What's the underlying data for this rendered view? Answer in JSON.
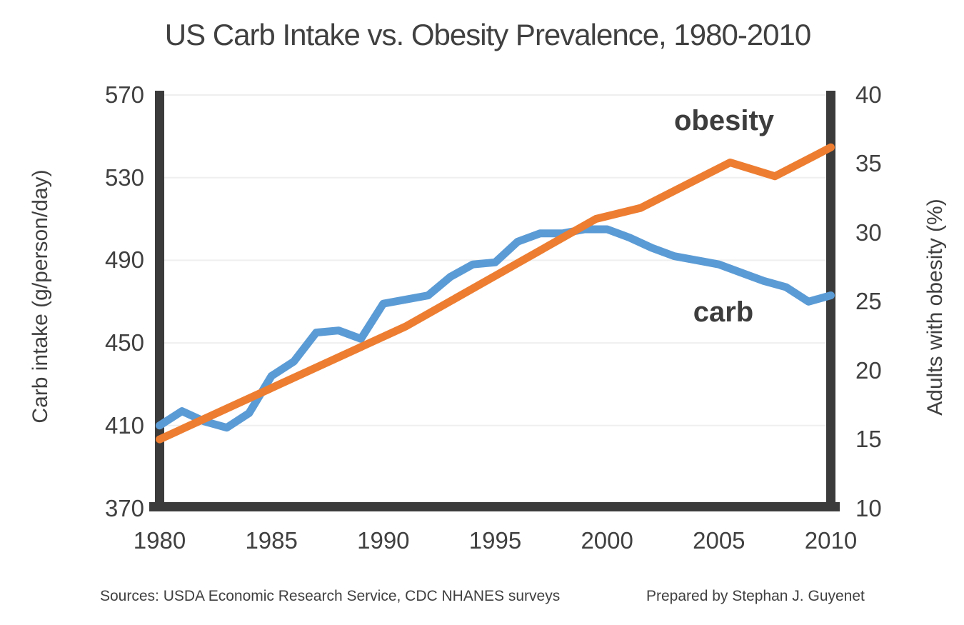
{
  "title": "US Carb Intake vs. Obesity Prevalence, 1980-2010",
  "chart_data": {
    "type": "line",
    "title": "US Carb Intake vs. Obesity Prevalence, 1980-2010",
    "grid": true,
    "legend_position": "inline-annotations",
    "x_axis": {
      "min": 1980,
      "max": 2010,
      "ticks": [
        1980,
        1985,
        1990,
        1995,
        2000,
        2005,
        2010
      ]
    },
    "y_left": {
      "title": "Carb intake (g/person/day)",
      "min": 370,
      "max": 570,
      "ticks": [
        570,
        530,
        490,
        450,
        410,
        370
      ]
    },
    "y_right": {
      "title": "Adults with obesity (%)",
      "min": 10,
      "max": 40,
      "ticks": [
        40,
        35,
        30,
        25,
        20,
        15,
        10
      ]
    },
    "series": [
      {
        "name": "carb",
        "label": "carb",
        "axis": "left",
        "color": "#5B9BD5",
        "x": [
          1980,
          1981,
          1982,
          1983,
          1984,
          1985,
          1986,
          1987,
          1988,
          1989,
          1990,
          1991,
          1992,
          1993,
          1994,
          1995,
          1996,
          1997,
          1998,
          1999,
          2000,
          2001,
          2002,
          2003,
          2004,
          2005,
          2006,
          2007,
          2008,
          2009,
          2010
        ],
        "values": [
          410,
          417,
          412,
          409,
          416,
          434,
          441,
          455,
          456,
          452,
          469,
          471,
          473,
          482,
          488,
          489,
          499,
          503,
          503,
          505,
          505,
          501,
          496,
          492,
          490,
          488,
          484,
          480,
          477,
          470,
          473
        ]
      },
      {
        "name": "obesity",
        "label": "obesity",
        "axis": "right",
        "color": "#ED7D31",
        "x": [
          1980,
          1991,
          1999.5,
          2001.5,
          2005.5,
          2007.5,
          2010
        ],
        "values": [
          15.0,
          23.2,
          31.0,
          31.8,
          35.1,
          34.1,
          36.2
        ]
      }
    ]
  },
  "annotations": {
    "obesity": "obesity",
    "carb": "carb"
  },
  "footer": {
    "sources": "Sources: USDA Economic Research Service, CDC NHANES surveys",
    "credit": "Prepared by Stephan J. Guyenet"
  },
  "colors": {
    "carb_line": "#5B9BD5",
    "obesity_line": "#ED7D31",
    "axis_bar": "#3B3B3B",
    "text": "#404040",
    "gridline": "#EFEFEF"
  }
}
